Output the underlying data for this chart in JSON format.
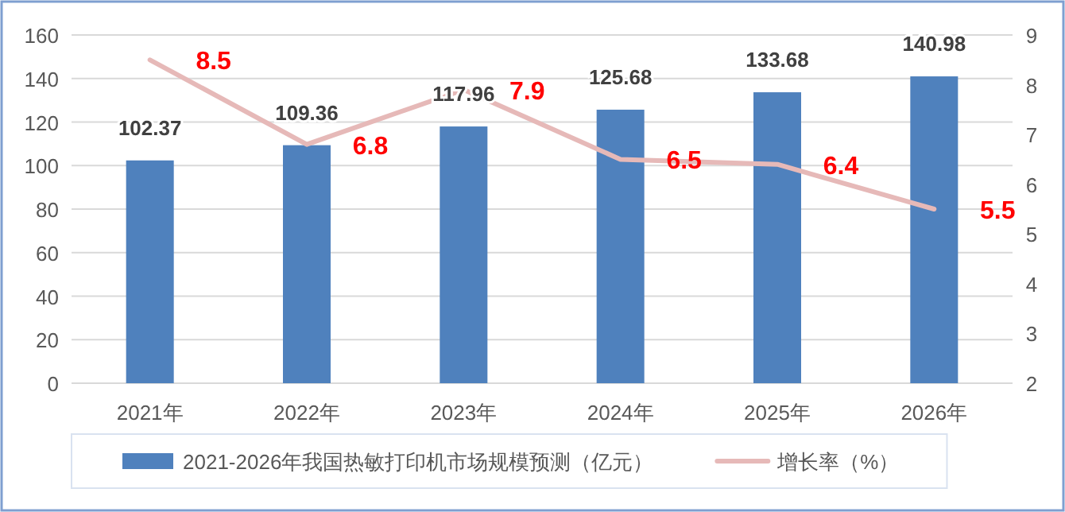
{
  "chart_data": {
    "type": "bar",
    "categories": [
      "2021年",
      "2022年",
      "2023年",
      "2024年",
      "2025年",
      "2026年"
    ],
    "series": [
      {
        "name": "2021-2026年我国热敏打印机市场规模预测（亿元）",
        "color": "#4f81bd",
        "values": [
          102.37,
          109.36,
          117.96,
          125.68,
          133.68,
          140.98
        ]
      },
      {
        "name": "增长率（%）",
        "type": "line",
        "axis": "y2",
        "color": "#e6b9b8",
        "values": [
          8.5,
          6.8,
          7.9,
          6.5,
          6.4,
          5.5
        ]
      }
    ],
    "ylim": [
      0,
      160
    ],
    "yticks": [
      0,
      20,
      40,
      60,
      80,
      100,
      120,
      140,
      160
    ],
    "y2lim": [
      2,
      9
    ],
    "y2ticks": [
      2,
      3,
      4,
      5,
      6,
      7,
      8,
      9
    ],
    "grid": "y",
    "data_labels": true,
    "legend": "bottom"
  }
}
